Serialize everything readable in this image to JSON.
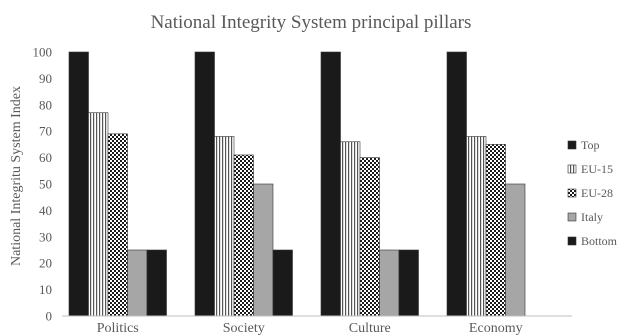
{
  "chart_data": {
    "type": "bar",
    "title": "National Integrity System principal pillars",
    "xlabel": "",
    "ylabel": "National Integritu System Index",
    "ylim": [
      0,
      100
    ],
    "yticks": [
      0,
      10,
      20,
      30,
      40,
      50,
      60,
      70,
      80,
      90,
      100
    ],
    "grid": false,
    "legend_position": "right",
    "categories": [
      "Politics",
      "Society",
      "Culture",
      "Economy"
    ],
    "series": [
      {
        "name": "Top",
        "values": [
          100,
          100,
          100,
          100
        ],
        "pattern": "solid-dark",
        "color": "#1a1a1a"
      },
      {
        "name": "EU-15",
        "values": [
          77,
          68,
          66,
          68
        ],
        "pattern": "vertical-lines",
        "color": "#444444"
      },
      {
        "name": "EU-28",
        "values": [
          69,
          61,
          60,
          65
        ],
        "pattern": "checker",
        "color": "#1a1a1a"
      },
      {
        "name": "Italy",
        "values": [
          25,
          50,
          25,
          50
        ],
        "pattern": "solid-gray",
        "color": "#a6a6a6"
      },
      {
        "name": "Bottom",
        "values": [
          25,
          25,
          25,
          0
        ],
        "pattern": "solid-dark",
        "color": "#1a1a1a"
      }
    ]
  }
}
